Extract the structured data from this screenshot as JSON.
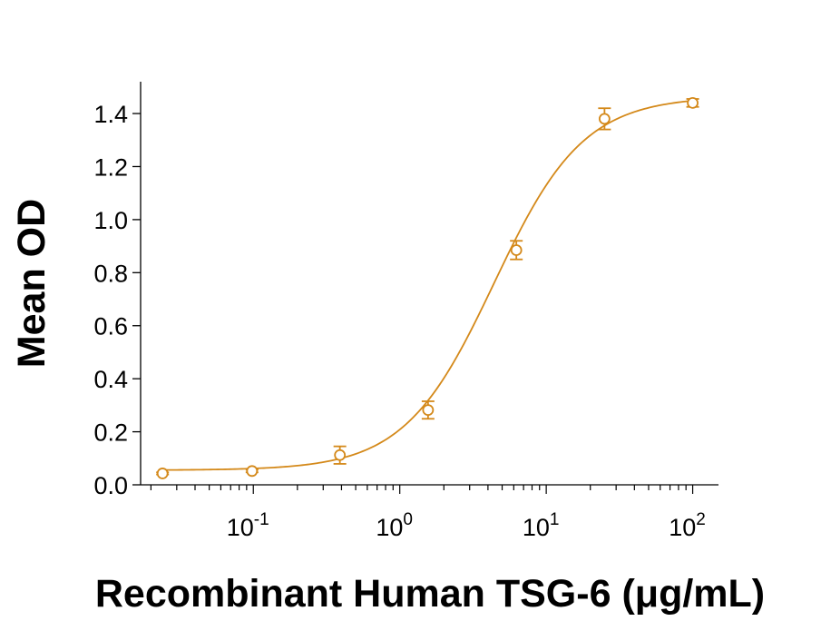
{
  "chart_data": {
    "type": "scatter",
    "title": "",
    "xlabel": "Recombinant Human TSG-6 (μg/mL)",
    "ylabel": "Mean OD",
    "x_scale": "log",
    "xlim": [
      0.017,
      150
    ],
    "ylim": [
      0,
      1.52
    ],
    "y_ticks": [
      "0.0",
      "0.2",
      "0.4",
      "0.6",
      "0.8",
      "1.0",
      "1.2",
      "1.4"
    ],
    "x_ticks": [
      {
        "value": 0.1,
        "base": "10",
        "exp": "-1"
      },
      {
        "value": 1,
        "base": "10",
        "exp": "0"
      },
      {
        "value": 10,
        "base": "10",
        "exp": "1"
      },
      {
        "value": 100,
        "base": "10",
        "exp": "2"
      }
    ],
    "series": [
      {
        "color": "#D4891A",
        "points": [
          {
            "x": 0.024,
            "y": 0.043,
            "err": 0.004
          },
          {
            "x": 0.098,
            "y": 0.052,
            "err": 0.005
          },
          {
            "x": 0.39,
            "y": 0.112,
            "err": 0.033
          },
          {
            "x": 1.56,
            "y": 0.282,
            "err": 0.033
          },
          {
            "x": 6.25,
            "y": 0.885,
            "err": 0.035
          },
          {
            "x": 25,
            "y": 1.38,
            "err": 0.04
          },
          {
            "x": 100,
            "y": 1.44,
            "err": 0.015
          }
        ],
        "fit": {
          "model": "4PL",
          "bottom": 0.055,
          "top": 1.465,
          "ec50": 4.4,
          "hill": 1.42
        }
      }
    ],
    "grid": false,
    "legend": "none"
  }
}
